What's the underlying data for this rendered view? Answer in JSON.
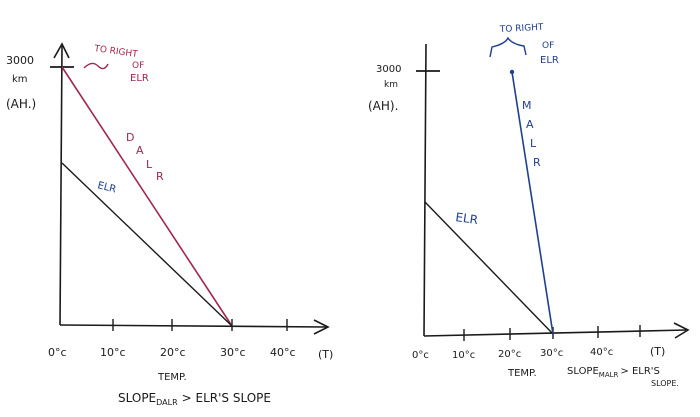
{
  "left": {
    "y_top_value": "3000",
    "y_unit": "km",
    "y_axis_label": "(AH.)",
    "x_ticks": [
      "0°c",
      "10°c",
      "20°c",
      "30°c",
      "40°c"
    ],
    "x_unit": "(T)",
    "x_axis_label": "TEMP.",
    "annotation_line1": "TO RIGHT",
    "annotation_line2": "OF",
    "annotation_line3": "ELR",
    "dalr_label": [
      "D",
      "A",
      "L",
      "R"
    ],
    "elr_label": "ELR",
    "caption_prefix": "SLOPE",
    "caption_sub": "DALR",
    "caption_rest": "> ELR'S SLOPE",
    "dalr_color": "#a0284a",
    "elr_color": "#1f3f8f"
  },
  "right": {
    "y_top_value": "3000",
    "y_unit": "km",
    "y_axis_label": "(AH).",
    "x_ticks": [
      "0°c",
      "10°c",
      "20°c",
      "30°c",
      "40°c"
    ],
    "x_unit": "(T)",
    "x_axis_label": "TEMP.",
    "annotation_line1": "TO RIGHT",
    "annotation_line2": "OF",
    "annotation_line3": "ELR",
    "malr_label": [
      "M",
      "A",
      "L",
      "R"
    ],
    "elr_label": "ELR",
    "caption_prefix": "SLOPE",
    "caption_sub": "MALR",
    "caption_rest": "> ELR'S",
    "caption_rest2": "SLOPE.",
    "malr_color": "#1f3f8f",
    "elr_color": "#1f3f8f"
  }
}
